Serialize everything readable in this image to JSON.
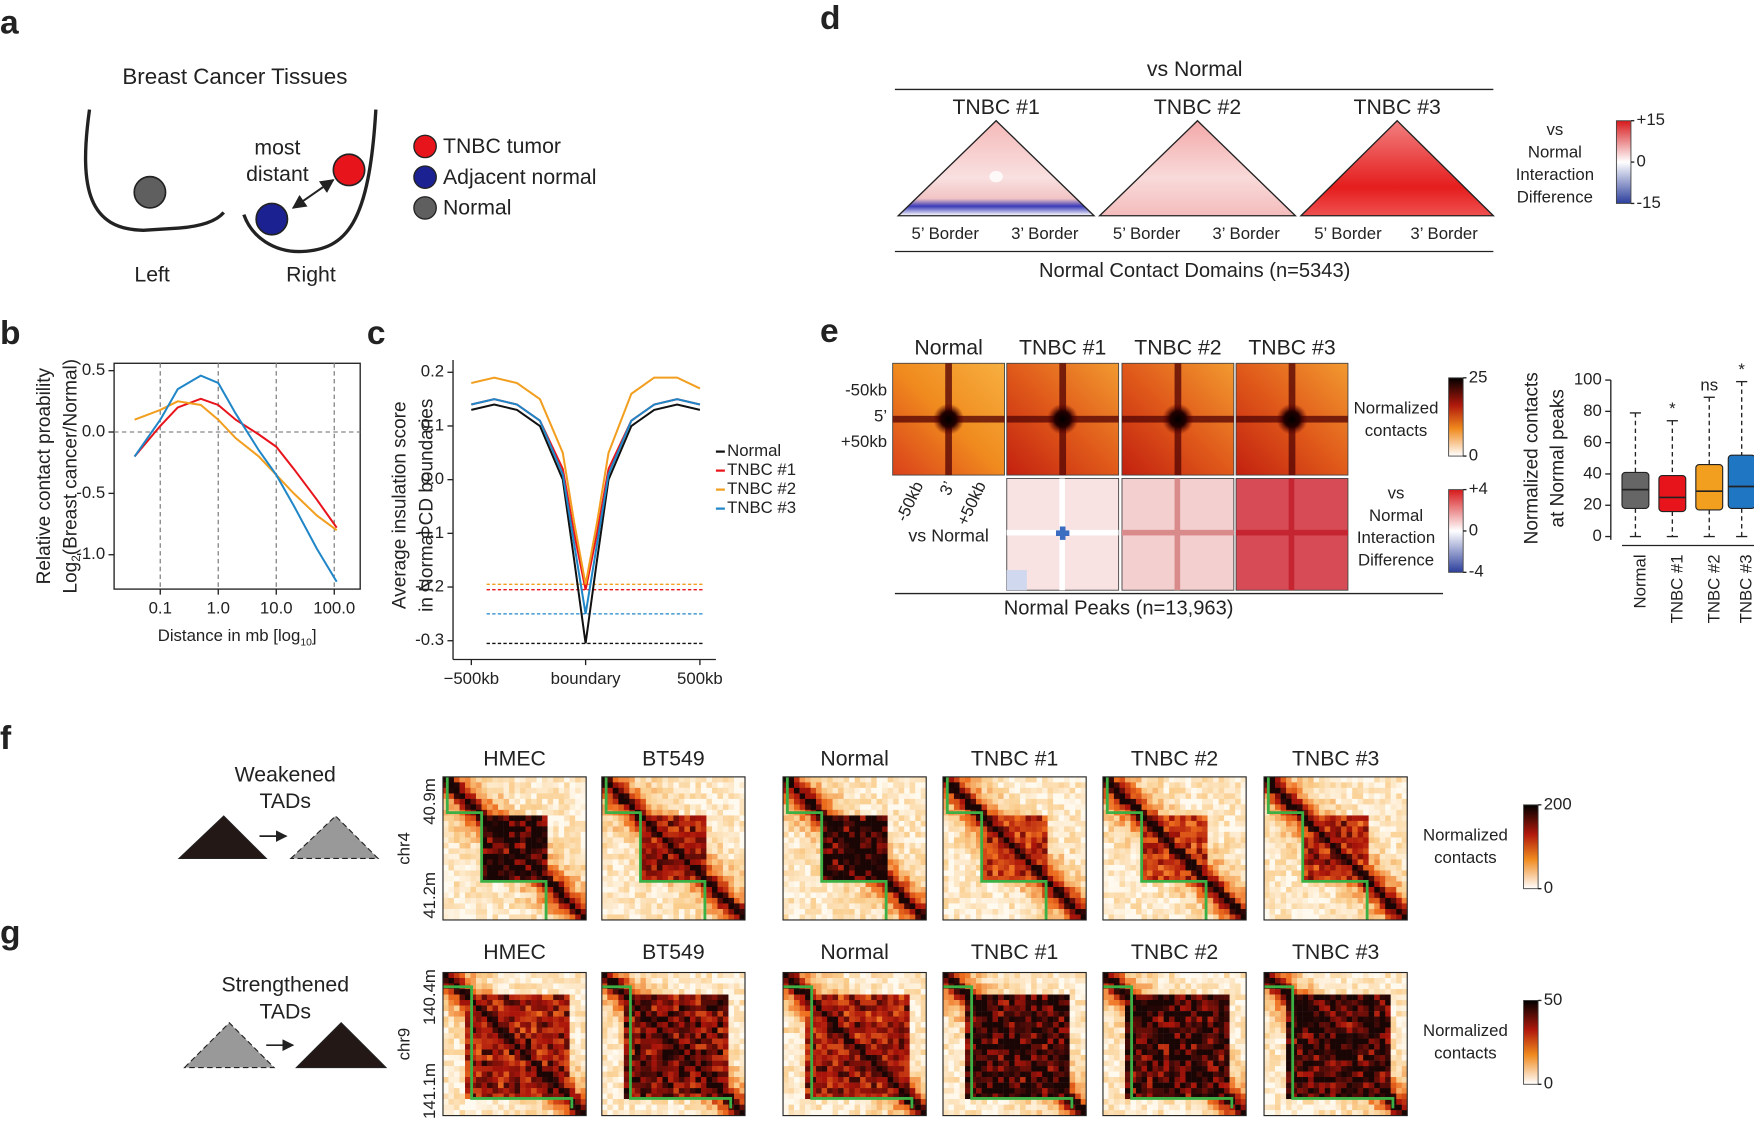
{
  "panel_labels": [
    "a",
    "b",
    "c",
    "d",
    "e",
    "f",
    "g"
  ],
  "a": {
    "title": "Breast Cancer Tissues",
    "left": "Left",
    "right": "Right",
    "annotation": [
      "most",
      "distant"
    ],
    "legend": [
      {
        "name": "TNBC tumor",
        "color": "#e8141c"
      },
      {
        "name": "Adjacent normal",
        "color": "#1b2190"
      },
      {
        "name": "Normal",
        "color": "#5f5f5f"
      }
    ]
  },
  "chart_data": [
    {
      "type": "line",
      "y_label": [
        "Relative contact proability",
        {
          "main": "Log",
          "sub": "2",
          "rest": "(Breast cancer/Normal)"
        }
      ],
      "x_label": {
        "main": "Distance in mb [log",
        "sub": "10",
        "rest": "]"
      },
      "log_x": true,
      "x": [
        0.036,
        0.1,
        0.2,
        0.5,
        1,
        2,
        5,
        10,
        20,
        50,
        110
      ],
      "series": [
        {
          "color": "#e8141c",
          "values": [
            -0.2,
            0.05,
            0.2,
            0.27,
            0.22,
            0.1,
            -0.02,
            -0.12,
            -0.3,
            -0.55,
            -0.78
          ]
        },
        {
          "color": "#f29e1f",
          "values": [
            0.1,
            0.18,
            0.25,
            0.22,
            0.1,
            -0.05,
            -0.2,
            -0.35,
            -0.5,
            -0.68,
            -0.8
          ]
        },
        {
          "color": "#1f86c8",
          "values": [
            -0.2,
            0.1,
            0.35,
            0.46,
            0.4,
            0.15,
            -0.15,
            -0.35,
            -0.6,
            -0.95,
            -1.22
          ]
        }
      ],
      "xlim": [
        0.016,
        280
      ],
      "xticks": [
        0.1,
        {
          "value": 1,
          "label": "1.0"
        },
        {
          "value": 10,
          "label": "10.0"
        },
        {
          "value": 100,
          "label": "100.0"
        }
      ],
      "ylim": [
        -1.28,
        0.56
      ],
      "yticks": [
        0.5,
        {
          "value": 0,
          "label": "0.0"
        },
        -0.5,
        {
          "value": -1,
          "label": "-1.0"
        }
      ],
      "hline": 0,
      "grid": true
    },
    {
      "type": "line",
      "y_label": [
        "Average insulation score",
        "in Normal CD boundaries"
      ],
      "x": [
        -500,
        -400,
        -300,
        -200,
        -100,
        -50,
        0,
        50,
        100,
        200,
        300,
        400,
        500
      ],
      "series": [
        {
          "name": "Normal",
          "color": "#111111",
          "values": [
            0.13,
            0.14,
            0.13,
            0.1,
            0.0,
            -0.15,
            -0.305,
            -0.15,
            0.0,
            0.1,
            0.13,
            0.14,
            0.13
          ]
        },
        {
          "name": "TNBC #1",
          "color": "#e8141c",
          "values": [
            0.14,
            0.15,
            0.14,
            0.11,
            0.02,
            -0.1,
            -0.205,
            -0.1,
            0.02,
            0.11,
            0.14,
            0.15,
            0.14
          ]
        },
        {
          "name": "TNBC #2",
          "color": "#f29e1f",
          "values": [
            0.18,
            0.19,
            0.18,
            0.15,
            0.05,
            -0.08,
            -0.195,
            -0.08,
            0.05,
            0.16,
            0.19,
            0.19,
            0.17
          ]
        },
        {
          "name": "TNBC #3",
          "color": "#1f86c8",
          "values": [
            0.14,
            0.15,
            0.14,
            0.11,
            0.01,
            -0.12,
            -0.25,
            -0.12,
            0.01,
            0.11,
            0.14,
            0.15,
            0.14
          ]
        }
      ],
      "hlines": [
        {
          "value": -0.195,
          "color": "#f29e1f"
        },
        {
          "value": -0.205,
          "color": "#e8141c"
        },
        {
          "value": -0.25,
          "color": "#1f86c8"
        },
        {
          "value": -0.305,
          "color": "#111111"
        }
      ],
      "xlim": [
        -580,
        570
      ],
      "xticks": [
        {
          "value": -500,
          "label": "−500kb"
        },
        {
          "value": 0,
          "label": "boundary"
        },
        {
          "value": 500,
          "label": "500kb"
        }
      ],
      "ylim": [
        -0.335,
        0.223
      ],
      "yticks": [
        0.2,
        0.1,
        {
          "value": 0,
          "label": "0.0"
        },
        -0.1,
        -0.2,
        -0.3
      ]
    },
    {
      "type": "box",
      "y_label": [
        "Normalized contacts",
        "at Normal peaks"
      ],
      "categories": [
        "Normal",
        "TNBC #1",
        "TNBC #2",
        "TNBC #3"
      ],
      "colors": [
        "#666666",
        "#e8141c",
        "#f29e1f",
        "#1f77c4"
      ],
      "boxes": [
        {
          "low": 0,
          "q1": 18,
          "median": 30,
          "q3": 41,
          "high": 79
        },
        {
          "low": 0,
          "q1": 16,
          "median": 25,
          "q3": 39,
          "high": 74
        },
        {
          "low": 0,
          "q1": 17,
          "median": 29,
          "q3": 46,
          "high": 89
        },
        {
          "low": 0,
          "q1": 18,
          "median": 32,
          "q3": 52,
          "high": 99
        }
      ],
      "significance": [
        null,
        "*",
        "ns",
        "*"
      ],
      "ylim": [
        0,
        100
      ],
      "yticks": [
        0,
        20,
        40,
        60,
        80,
        100
      ]
    }
  ],
  "d": {
    "header": "vs Normal",
    "columns": [
      "TNBC #1",
      "TNBC #2",
      "TNBC #3"
    ],
    "borders": [
      "5’ Border",
      "3’ Border"
    ],
    "footer": "Normal Contact Domains (n=5343)",
    "colorbar": {
      "title": [
        "vs",
        "Normal",
        "Interaction",
        "Difference"
      ],
      "lim": [
        -15,
        15
      ],
      "ticks": [
        {
          "value": 15,
          "label": "+15"
        },
        0,
        {
          "value": -15,
          "label": "-15"
        }
      ]
    }
  },
  "e": {
    "columns": [
      "Normal",
      "TNBC #1",
      "TNBC #2",
      "TNBC #3"
    ],
    "row_labels": [
      "-50kb",
      "5’",
      "+50kb"
    ],
    "col_labels": [
      "-50kb",
      "3’",
      "+50kb"
    ],
    "diff_label": "vs Normal",
    "footer": "Normal Peaks (n=13,963)",
    "colorbar_contacts": {
      "title": [
        "Normalized",
        "contacts"
      ],
      "lim": [
        0,
        25
      ],
      "ticks": [
        25,
        0
      ]
    },
    "colorbar_diff": {
      "title": [
        "vs",
        "Normal",
        "Interaction",
        "Difference"
      ],
      "lim": [
        -4,
        4
      ],
      "ticks": [
        {
          "value": 4,
          "label": "+4"
        },
        0,
        {
          "value": -4,
          "label": "-4"
        }
      ]
    }
  },
  "f": {
    "label": [
      "Weakened",
      "TADs"
    ],
    "columns": [
      "HMEC",
      "BT549",
      "Normal",
      "TNBC #1",
      "TNBC #2",
      "TNBC #3"
    ],
    "chrom": "chr4",
    "coords": [
      "40.9m",
      "41.2m"
    ],
    "colorbar": {
      "title": [
        "Normalized",
        "contacts"
      ],
      "lim": [
        0,
        200
      ],
      "ticks": [
        200,
        0
      ]
    }
  },
  "g": {
    "label": [
      "Strengthened",
      "TADs"
    ],
    "columns": [
      "HMEC",
      "BT549",
      "Normal",
      "TNBC #1",
      "TNBC #2",
      "TNBC #3"
    ],
    "chrom": "chr9",
    "coords": [
      "140.4m",
      "141.1m"
    ],
    "colorbar": {
      "title": [
        "Normalized",
        "contacts"
      ],
      "lim": [
        0,
        50
      ],
      "ticks": [
        50,
        0
      ]
    }
  }
}
